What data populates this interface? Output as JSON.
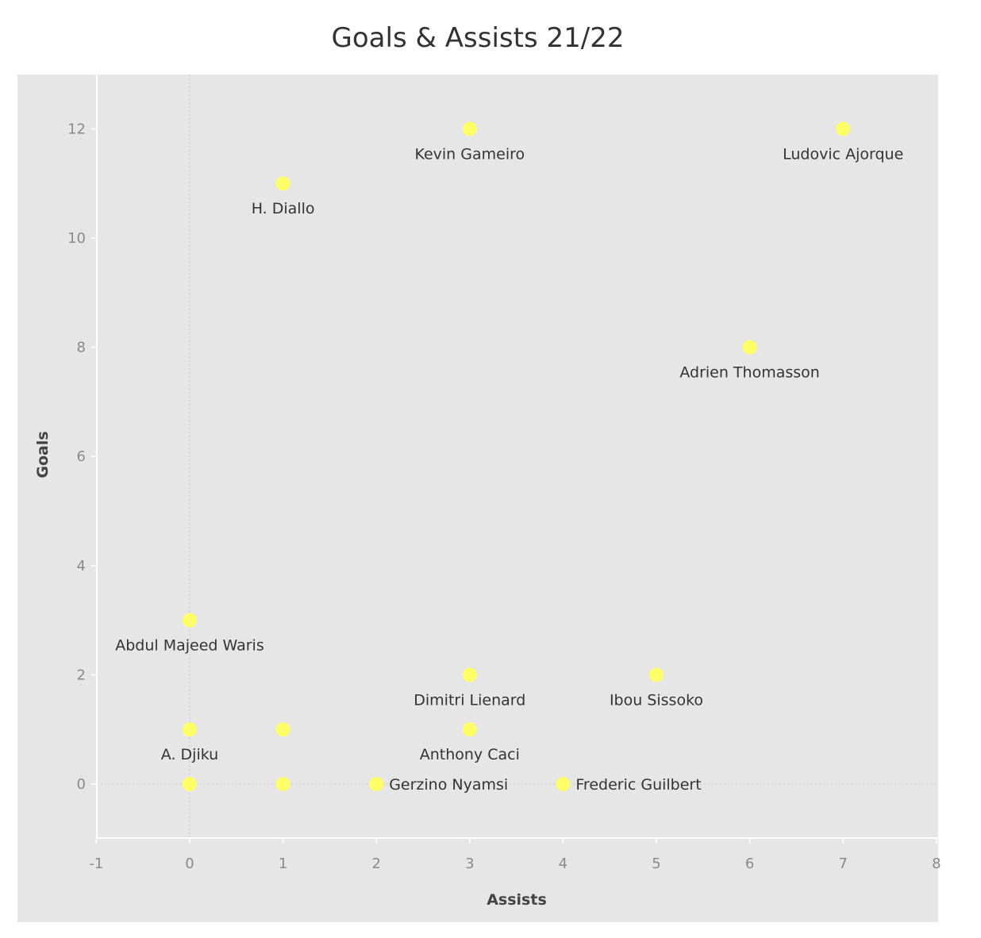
{
  "chart_data": {
    "type": "scatter",
    "title": "Goals & Assists 21/22",
    "xlabel": "Assists",
    "ylabel": "Goals",
    "xlim": [
      -1,
      8
    ],
    "ylim": [
      -1,
      12.9
    ],
    "xticks": [
      -1,
      0,
      1,
      2,
      3,
      4,
      5,
      6,
      7,
      8
    ],
    "yticks": [
      0,
      2,
      4,
      6,
      8,
      10,
      12
    ],
    "grid": false,
    "zero_lines": true,
    "colors": {
      "background": "#e6e6e6",
      "point": "#ffff66",
      "zero_line": "#c8c8c8",
      "axis": "#ffffff"
    },
    "points": [
      {
        "label": "Kevin Gameiro",
        "x": 3,
        "y": 12,
        "label_pos": "below"
      },
      {
        "label": "Ludovic Ajorque",
        "x": 7,
        "y": 12,
        "label_pos": "below"
      },
      {
        "label": "H. Diallo",
        "x": 1,
        "y": 11,
        "label_pos": "below"
      },
      {
        "label": "Adrien Thomasson",
        "x": 6,
        "y": 8,
        "label_pos": "below"
      },
      {
        "label": "Abdul Majeed Waris",
        "x": 0,
        "y": 3,
        "label_pos": "below"
      },
      {
        "label": "Dimitri Lienard",
        "x": 3,
        "y": 2,
        "label_pos": "below"
      },
      {
        "label": "Ibou Sissoko",
        "x": 5,
        "y": 2,
        "label_pos": "below"
      },
      {
        "label": "A. Djiku",
        "x": 0,
        "y": 1,
        "label_pos": "below"
      },
      {
        "label": "",
        "x": 1,
        "y": 1,
        "label_pos": "none"
      },
      {
        "label": "Anthony Caci",
        "x": 3,
        "y": 1,
        "label_pos": "below"
      },
      {
        "label": "",
        "x": 0,
        "y": 0,
        "label_pos": "none"
      },
      {
        "label": "",
        "x": 1,
        "y": 0,
        "label_pos": "none"
      },
      {
        "label": "Gerzino Nyamsi",
        "x": 2,
        "y": 0,
        "label_pos": "right"
      },
      {
        "label": "Frederic Guilbert",
        "x": 4,
        "y": 0,
        "label_pos": "right"
      }
    ]
  }
}
